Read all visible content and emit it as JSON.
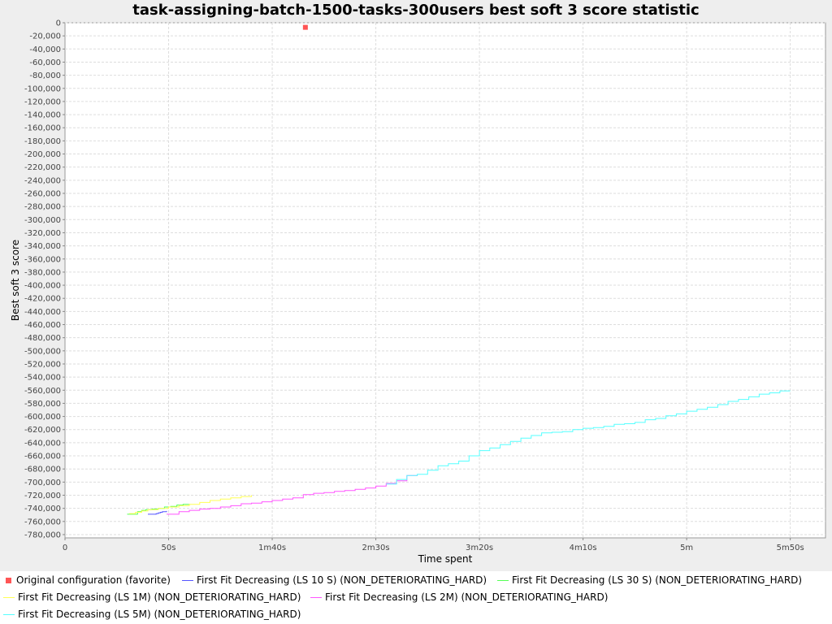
{
  "chart_data": {
    "type": "line",
    "title": "task-assigning-batch-1500-tasks-300users best soft 3 score statistic",
    "xlabel": "Time spent",
    "ylabel": "Best soft 3 score",
    "x_unit": "seconds",
    "xlim": [
      0,
      367
    ],
    "ylim": [
      -785000,
      0
    ],
    "x_ticks": [
      {
        "value": 0,
        "label": "0"
      },
      {
        "value": 50,
        "label": "50s"
      },
      {
        "value": 100,
        "label": "1m40s"
      },
      {
        "value": 150,
        "label": "2m30s"
      },
      {
        "value": 200,
        "label": "3m20s"
      },
      {
        "value": 250,
        "label": "4m10s"
      },
      {
        "value": 300,
        "label": "5m"
      },
      {
        "value": 350,
        "label": "5m50s"
      }
    ],
    "y_ticks": [
      0,
      -20000,
      -40000,
      -60000,
      -80000,
      -100000,
      -120000,
      -140000,
      -160000,
      -180000,
      -200000,
      -220000,
      -240000,
      -260000,
      -280000,
      -300000,
      -320000,
      -340000,
      -360000,
      -380000,
      -400000,
      -420000,
      -440000,
      -460000,
      -480000,
      -500000,
      -520000,
      -540000,
      -560000,
      -580000,
      -600000,
      -620000,
      -640000,
      -660000,
      -680000,
      -700000,
      -720000,
      -740000,
      -760000,
      -780000
    ],
    "y_tick_labels": [
      "0",
      "-20,000",
      "-40,000",
      "-60,000",
      "-80,000",
      "-100,000",
      "-120,000",
      "-140,000",
      "-160,000",
      "-180,000",
      "-200,000",
      "-220,000",
      "-240,000",
      "-260,000",
      "-280,000",
      "-300,000",
      "-320,000",
      "-340,000",
      "-360,000",
      "-380,000",
      "-400,000",
      "-420,000",
      "-440,000",
      "-460,000",
      "-480,000",
      "-500,000",
      "-520,000",
      "-540,000",
      "-560,000",
      "-580,000",
      "-600,000",
      "-620,000",
      "-640,000",
      "-660,000",
      "-680,000",
      "-700,000",
      "-720,000",
      "-740,000",
      "-760,000",
      "-780,000"
    ],
    "grid": true,
    "legend_position": "bottom",
    "series": [
      {
        "name": "Original configuration (favorite)",
        "color": "#ff5555",
        "marker": "square",
        "x": [
          116
        ],
        "y": [
          -7000
        ]
      },
      {
        "name": "First Fit Decreasing (LS 10 S) (NON_DETERIORATING_HARD)",
        "color": "#5555ff",
        "marker": "line",
        "x": [
          40,
          43,
          44,
          45,
          46,
          47,
          49
        ],
        "y": [
          -749000,
          -749000,
          -748000,
          -747000,
          -746000,
          -745000,
          -744000
        ]
      },
      {
        "name": "First Fit Decreasing (LS 30 S) (NON_DETERIORATING_HARD)",
        "color": "#55ff55",
        "marker": "line",
        "x": [
          30,
          33,
          35,
          37,
          39,
          42,
          45,
          48,
          51,
          54,
          57,
          60
        ],
        "y": [
          -749000,
          -749000,
          -745000,
          -743000,
          -742000,
          -741000,
          -740000,
          -738000,
          -737000,
          -735000,
          -734000,
          -733000
        ]
      },
      {
        "name": "First Fit Decreasing (LS 1M) (NON_DETERIORATING_HARD)",
        "color": "#ffff55",
        "marker": "line",
        "x": [
          31,
          34,
          37,
          40,
          45,
          50,
          55,
          60,
          65,
          70,
          75,
          80,
          85,
          90
        ],
        "y": [
          -748000,
          -746000,
          -744000,
          -742000,
          -740000,
          -738000,
          -736000,
          -734000,
          -731000,
          -728000,
          -726000,
          -724000,
          -722000,
          -720000
        ]
      },
      {
        "name": "First Fit Decreasing (LS 2M) (NON_DETERIORATING_HARD)",
        "color": "#ff55ff",
        "marker": "line",
        "x": [
          49,
          53,
          55,
          60,
          65,
          70,
          75,
          80,
          85,
          90,
          95,
          100,
          105,
          110,
          115,
          120,
          125,
          130,
          135,
          140,
          145,
          150,
          155,
          160,
          165,
          170
        ],
        "y": [
          -749000,
          -749000,
          -745000,
          -743000,
          -741000,
          -740000,
          -738000,
          -736000,
          -733000,
          -732000,
          -730000,
          -728000,
          -726000,
          -724000,
          -719000,
          -717000,
          -716000,
          -714000,
          -713000,
          -711000,
          -709000,
          -706000,
          -702000,
          -698000,
          -690000,
          -689000
        ]
      },
      {
        "name": "First Fit Decreasing (LS 5M) (NON_DETERIORATING_HARD)",
        "color": "#55ffff",
        "marker": "line",
        "x": [
          155,
          160,
          165,
          170,
          175,
          180,
          185,
          190,
          195,
          200,
          205,
          210,
          215,
          220,
          225,
          230,
          235,
          240,
          245,
          250,
          255,
          260,
          265,
          270,
          275,
          280,
          285,
          290,
          295,
          300,
          305,
          310,
          315,
          320,
          325,
          330,
          335,
          340,
          345,
          350
        ],
        "y": [
          -703000,
          -696000,
          -690000,
          -688000,
          -682000,
          -675000,
          -672000,
          -668000,
          -660000,
          -652000,
          -648000,
          -643000,
          -638000,
          -633000,
          -629000,
          -625000,
          -624000,
          -623000,
          -620000,
          -618000,
          -617000,
          -615000,
          -612000,
          -611000,
          -609000,
          -605000,
          -603000,
          -599000,
          -596000,
          -592000,
          -589000,
          -586000,
          -582000,
          -577000,
          -574000,
          -570000,
          -566000,
          -564000,
          -561000,
          -561000
        ]
      }
    ]
  }
}
